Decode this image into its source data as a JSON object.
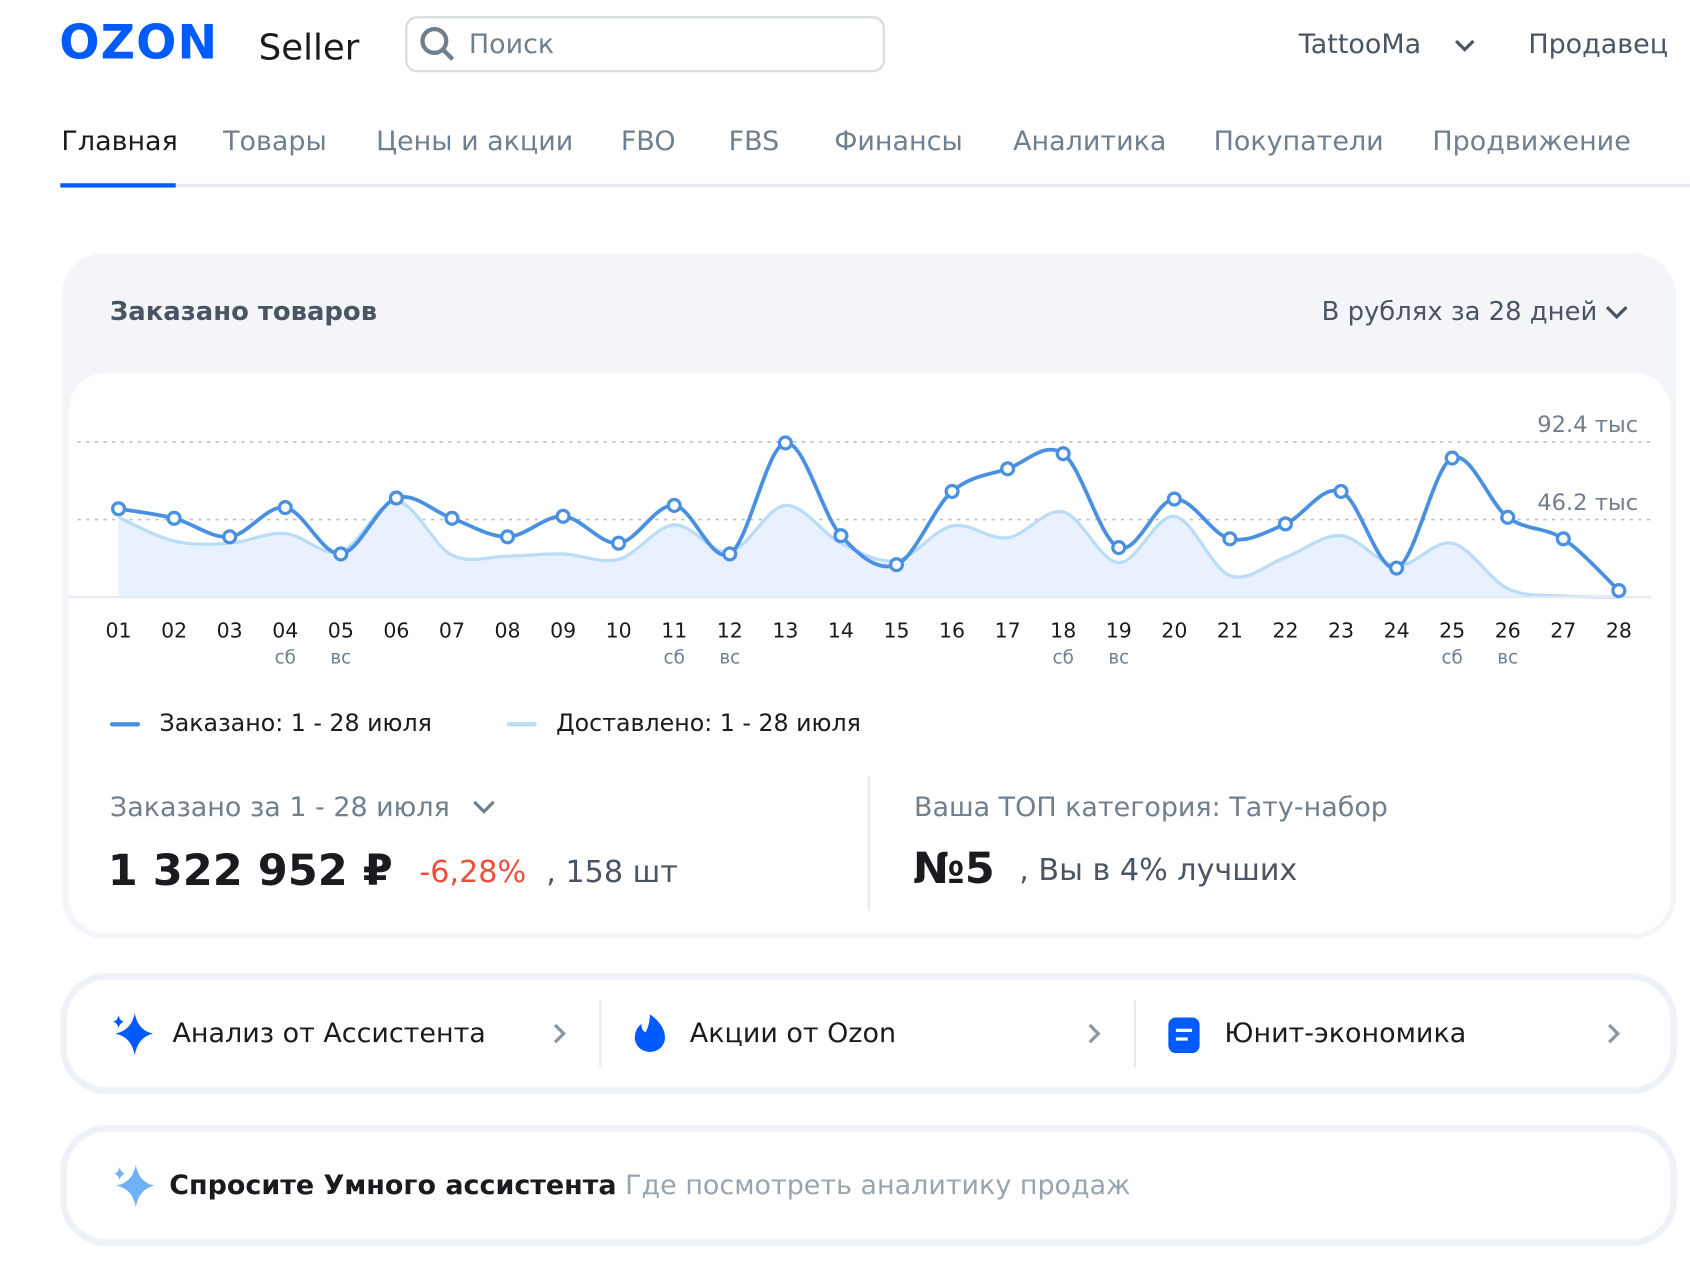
{
  "header": {
    "logo": "OZON",
    "product": "Seller",
    "search_placeholder": "Поиск",
    "account": "TattooMa",
    "role": "Продавец"
  },
  "nav": [
    "Главная",
    "Товары",
    "Цены и акции",
    "FBO",
    "FBS",
    "Финансы",
    "Аналитика",
    "Покупатели",
    "Продвижение"
  ],
  "chart_data": {
    "type": "line",
    "title": "Заказано товаров",
    "period_selector": "В рублях за 28 дней",
    "categories": [
      "01",
      "02",
      "03",
      "04",
      "05",
      "06",
      "07",
      "08",
      "09",
      "10",
      "11",
      "12",
      "13",
      "14",
      "15",
      "16",
      "17",
      "18",
      "19",
      "20",
      "21",
      "22",
      "23",
      "24",
      "25",
      "26",
      "27",
      "28"
    ],
    "day_labels": [
      null,
      null,
      null,
      "сб",
      "вс",
      null,
      null,
      null,
      null,
      null,
      "сб",
      "вс",
      null,
      null,
      null,
      null,
      null,
      "сб",
      "вс",
      null,
      null,
      null,
      null,
      null,
      "сб",
      "вс",
      null,
      null
    ],
    "series": [
      {
        "name": "Заказано: 1 - 28 июля",
        "color": "#4a90e2",
        "values": [
          52.6,
          46.9,
          35.9,
          53.3,
          25.7,
          59.0,
          46.9,
          35.9,
          48.1,
          32.1,
          54.6,
          25.7,
          91.8,
          36.6,
          19.3,
          62.9,
          76.4,
          85.4,
          29.5,
          58.4,
          34.7,
          43.6,
          62.9,
          17.3,
          82.8,
          47.5,
          34.7,
          3.9
        ]
      },
      {
        "name": "Доставлено: 1 - 28 июля",
        "color": "#b9dcf7",
        "values": [
          47.5,
          33.4,
          32.1,
          37.9,
          27.0,
          57.0,
          25.0,
          24.4,
          25.7,
          22.5,
          43.0,
          27.0,
          54.6,
          32.1,
          21.8,
          42.4,
          35.3,
          50.7,
          20.5,
          48.1,
          12.8,
          23.7,
          36.6,
          18.6,
          32.1,
          5.1,
          0.6,
          0
        ]
      }
    ],
    "ylim": [
      0,
      92.4
    ],
    "yticks": [
      {
        "value": 46.2,
        "label": "46.2 тыс"
      },
      {
        "value": 92.4,
        "label": "92.4 тыс"
      }
    ],
    "grid": true
  },
  "summary": {
    "ordered_label": "Заказано за 1 - 28 июля",
    "amount": "1 322 952 ₽",
    "change": "-6,28%",
    "count": ", 158 шт",
    "top_label": "Ваша ТОП категория: Тату-набор",
    "rank": "№5",
    "rank_note": ", Вы в 4% лучших"
  },
  "shortcuts": [
    "Анализ от Ассистента",
    "Акции от Ozon",
    "Юнит-экономика"
  ],
  "assistant": {
    "title": "Спросите Умного ассистента",
    "placeholder": "Где посмотреть аналитику продаж"
  }
}
